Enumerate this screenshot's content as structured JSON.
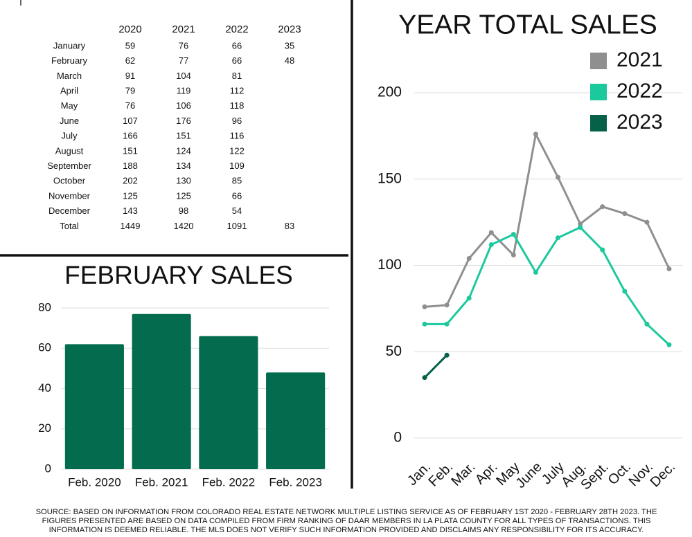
{
  "table": {
    "header": [
      "2020",
      "2021",
      "2022",
      "2023"
    ],
    "rows": [
      [
        "January",
        59,
        76,
        66,
        35
      ],
      [
        "February",
        62,
        77,
        66,
        48
      ],
      [
        "March",
        91,
        104,
        81,
        null
      ],
      [
        "April",
        79,
        119,
        112,
        null
      ],
      [
        "May",
        76,
        106,
        118,
        null
      ],
      [
        "June",
        107,
        176,
        96,
        null
      ],
      [
        "July",
        166,
        151,
        116,
        null
      ],
      [
        "August",
        151,
        124,
        122,
        null
      ],
      [
        "September",
        188,
        134,
        109,
        null
      ],
      [
        "October",
        202,
        130,
        85,
        null
      ],
      [
        "November",
        125,
        125,
        66,
        null
      ],
      [
        "December",
        143,
        98,
        54,
        null
      ],
      [
        "Total",
        1449,
        1420,
        1091,
        83
      ]
    ]
  },
  "chart_data": [
    {
      "type": "bar",
      "title": "FEBRUARY SALES",
      "categories": [
        "Feb. 2020",
        "Feb. 2021",
        "Feb. 2022",
        "Feb. 2023"
      ],
      "values": [
        62,
        77,
        66,
        48
      ],
      "color": "#036b4e",
      "ylim": [
        0,
        80
      ],
      "yticks": [
        0,
        20,
        40,
        60,
        80
      ],
      "grid": true
    },
    {
      "type": "line",
      "title": "YEAR TOTAL SALES",
      "categories": [
        "Jan.",
        "Feb.",
        "Mar.",
        "Apr.",
        "May",
        "June",
        "July",
        "Aug.",
        "Sept.",
        "Oct.",
        "Nov.",
        "Dec."
      ],
      "series": [
        {
          "name": "2021",
          "color": "#8f8f8f",
          "values": [
            76,
            77,
            104,
            119,
            106,
            176,
            151,
            124,
            134,
            130,
            125,
            98
          ]
        },
        {
          "name": "2022",
          "color": "#1cc99c",
          "values": [
            66,
            66,
            81,
            112,
            118,
            96,
            116,
            122,
            109,
            85,
            66,
            54
          ]
        },
        {
          "name": "2023",
          "color": "#07604a",
          "values": [
            35,
            48,
            null,
            null,
            null,
            null,
            null,
            null,
            null,
            null,
            null,
            null
          ]
        }
      ],
      "ylim": [
        0,
        200
      ],
      "yticks": [
        0,
        50,
        100,
        150,
        200
      ],
      "grid": true,
      "legend": "top-right"
    }
  ],
  "footer": [
    "SOURCE: BASED ON INFORMATION FROM COLORADO REAL ESTATE NETWORK MULTIPLE LISTING SERVICE AS OF FEBRUARY 1ST 2020 - FEBRUARY 28TH 2023. THE",
    "FIGURES PRESENTED ARE BASED ON DATA COMPILED FROM FIRM RANKING OF DAAR MEMBERS IN LA PLATA COUNTY FOR ALL TYPES OF TRANSACTIONS. THIS",
    "INFORMATION IS DEEMED RELIABLE. THE MLS DOES NOT VERIFY SUCH INFORMATION PROVIDED AND DISCLAIMS ANY RESPONSIBILITY FOR ITS ACCURACY."
  ]
}
